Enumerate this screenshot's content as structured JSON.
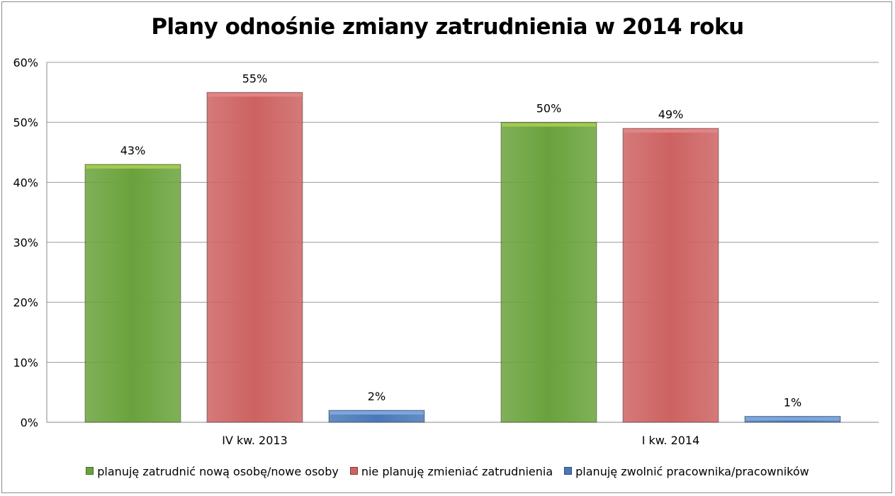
{
  "chart_data": {
    "type": "bar",
    "title": "Plany odnośnie zmiany zatrudnienia w 2014 roku",
    "categories": [
      "IV kw. 2013",
      "I kw. 2014"
    ],
    "series": [
      {
        "name": "planuję zatrudnić nową osobę/nowe osoby",
        "values": [
          43,
          50
        ],
        "labels": [
          "43%",
          "50%"
        ],
        "color": "#6aa23c",
        "top_color": "#a3c94e"
      },
      {
        "name": "nie planuję zmieniać zatrudnienia",
        "values": [
          55,
          49
        ],
        "labels": [
          "55%",
          "49%"
        ],
        "color": "#cd6262",
        "top_color": "#e08585"
      },
      {
        "name": "planuję zwolnić pracownika/pracowników",
        "values": [
          2,
          1
        ],
        "labels": [
          "2%",
          "1%"
        ],
        "color": "#4a78b8",
        "top_color": "#7da6dc"
      }
    ],
    "ylim": [
      0,
      60
    ],
    "yticks": [
      0,
      10,
      20,
      30,
      40,
      50,
      60
    ],
    "ytick_labels": [
      "0%",
      "10%",
      "20%",
      "30%",
      "40%",
      "50%",
      "60%"
    ],
    "xlabel": "",
    "ylabel": "",
    "grid": true,
    "legend_position": "bottom"
  }
}
